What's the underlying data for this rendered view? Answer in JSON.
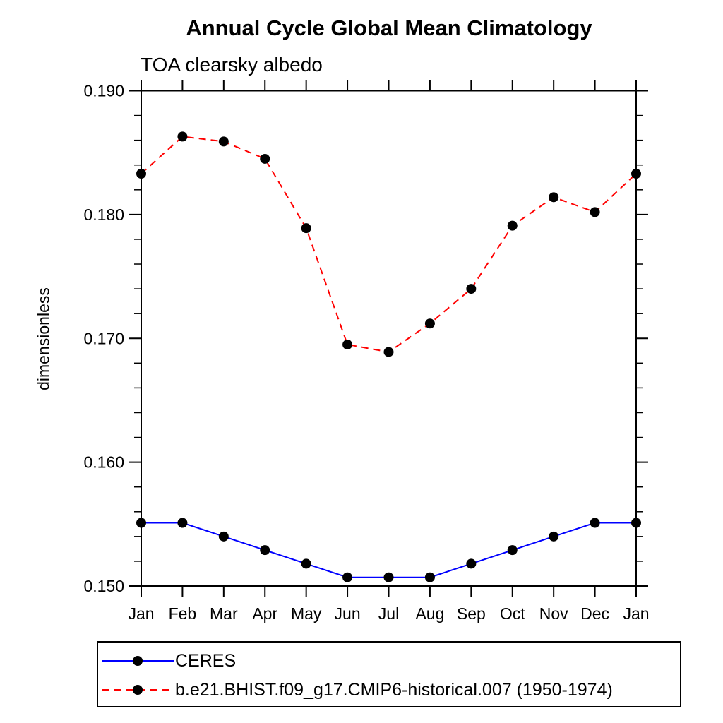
{
  "chart_data": {
    "type": "line",
    "title": "Annual Cycle Global Mean Climatology",
    "subtitle": "TOA clearsky albedo",
    "xlabel": "",
    "ylabel": "dimensionless",
    "categories": [
      "Jan",
      "Feb",
      "Mar",
      "Apr",
      "May",
      "Jun",
      "Jul",
      "Aug",
      "Sep",
      "Oct",
      "Nov",
      "Dec",
      "Jan"
    ],
    "series": [
      {
        "name": "CERES",
        "color": "#0000ff",
        "line_style": "solid",
        "marker": "filled-circle",
        "marker_color": "#000000",
        "values": [
          0.1551,
          0.1551,
          0.154,
          0.1529,
          0.1518,
          0.1507,
          0.1507,
          0.1507,
          0.1518,
          0.1529,
          0.154,
          0.1551,
          0.1551
        ]
      },
      {
        "name": "b.e21.BHIST.f09_g17.CMIP6-historical.007 (1950-1974)",
        "color": "#ff0000",
        "line_style": "dashed",
        "marker": "filled-circle",
        "marker_color": "#000000",
        "values": [
          0.1833,
          0.1863,
          0.1859,
          0.1845,
          0.1789,
          0.1695,
          0.1689,
          0.1712,
          0.174,
          0.1791,
          0.1814,
          0.1802,
          0.1833
        ]
      }
    ],
    "ylim": [
      0.15,
      0.19
    ],
    "yticks": [
      0.15,
      0.16,
      0.17,
      0.18,
      0.19
    ],
    "ytick_decimals": 3,
    "y_minor_step": 0.002,
    "grid": false,
    "axis_color": "#000000",
    "legend_position": "bottom-left"
  }
}
